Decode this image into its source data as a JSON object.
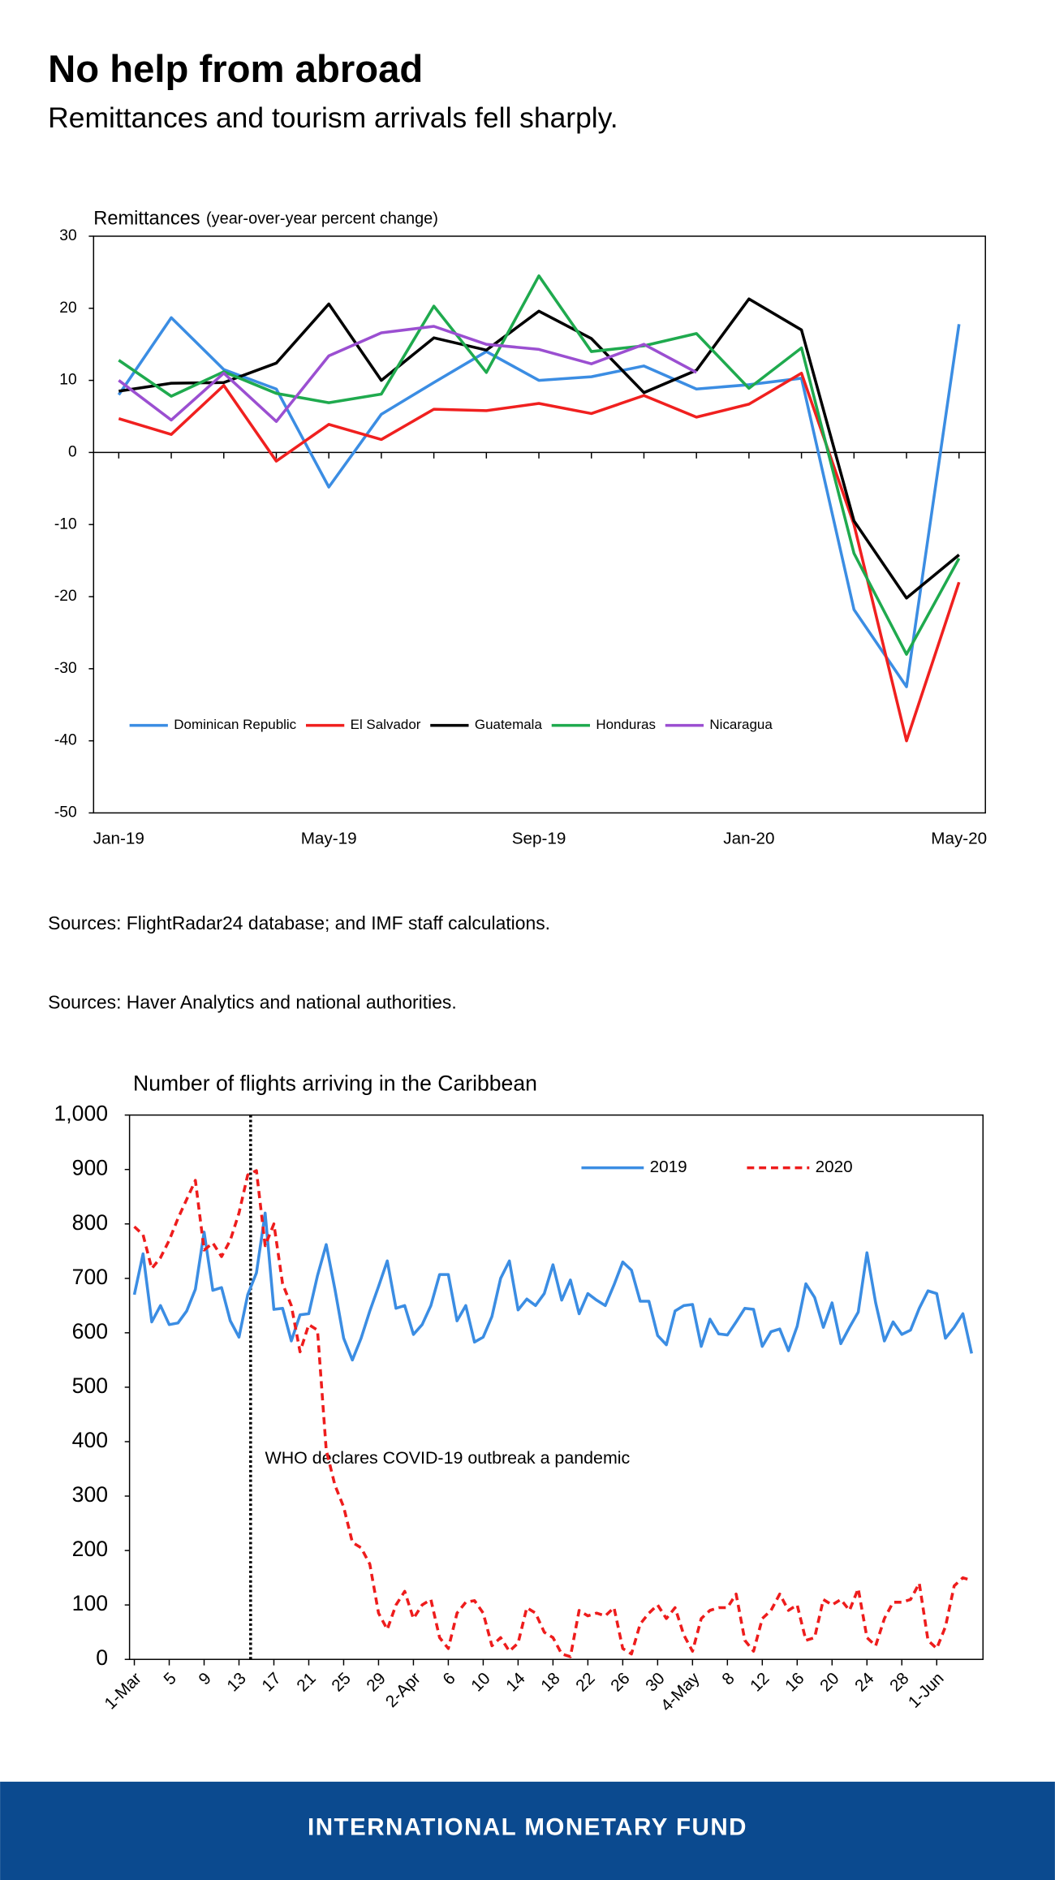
{
  "header": {
    "title": "No help from abroad",
    "subtitle": "Remittances and tourism arrivals fell sharply."
  },
  "chart_data": [
    {
      "type": "line",
      "title": "Remittances",
      "subtitle": "(year-over-year percent change)",
      "categories": [
        "Jan-19",
        null,
        null,
        null,
        "May-19",
        null,
        null,
        null,
        "Sep-19",
        null,
        null,
        null,
        "Jan-20",
        null,
        null,
        null,
        "May-20"
      ],
      "ylim": [
        -50,
        30
      ],
      "yticks": [
        -50,
        -40,
        -30,
        -20,
        -10,
        0,
        10,
        20,
        30
      ],
      "legend": "bottom-left",
      "series": [
        {
          "name": "Dominican Republic",
          "color": "#3b8de3",
          "values": [
            8,
            18.7,
            11.5,
            8.8,
            -4.8,
            5.3,
            9.7,
            14,
            10,
            10.5,
            12,
            8.8,
            9.4,
            10.3,
            -21.8,
            -32.5,
            17.8
          ]
        },
        {
          "name": "El Salvador",
          "color": "#f0201f",
          "values": [
            4.7,
            2.5,
            9.3,
            -1.2,
            3.9,
            1.8,
            6,
            5.8,
            6.8,
            5.4,
            7.9,
            4.9,
            6.7,
            11,
            -10,
            -40,
            -18
          ]
        },
        {
          "name": "Guatemala",
          "color": "#000000",
          "values": [
            8.5,
            9.6,
            9.7,
            12.4,
            20.6,
            10,
            15.9,
            14.2,
            19.6,
            15.8,
            8.3,
            11.4,
            21.3,
            17,
            -9.5,
            -20.2,
            -14.2
          ]
        },
        {
          "name": "Honduras",
          "color": "#1faa4e",
          "values": [
            12.8,
            7.8,
            11.2,
            8.2,
            6.9,
            8.1,
            20.3,
            11.1,
            24.5,
            14,
            14.8,
            16.5,
            8.9,
            14.5,
            -14,
            -28,
            -14.7
          ]
        },
        {
          "name": "Nicaragua",
          "color": "#9b4fd1",
          "values": [
            10,
            4.5,
            11,
            4.3,
            13.4,
            16.6,
            17.5,
            15,
            14.3,
            12.3,
            15,
            11.1,
            null,
            null,
            null,
            null,
            null
          ]
        }
      ]
    },
    {
      "type": "line",
      "title": "Number of flights arriving in the Caribbean",
      "annotation": "WHO declares COVID-19 outbreak a pandemic",
      "categories": [
        "1-Mar",
        null,
        null,
        null,
        "5",
        null,
        null,
        null,
        "9",
        null,
        null,
        null,
        "13",
        null,
        null,
        null,
        "17",
        null,
        null,
        null,
        "21",
        null,
        null,
        null,
        "25",
        null,
        null,
        null,
        "29",
        null,
        null,
        null,
        "2-Apr",
        null,
        null,
        null,
        "6",
        null,
        null,
        null,
        "10",
        null,
        null,
        null,
        "14",
        null,
        null,
        null,
        "18",
        null,
        null,
        null,
        "22",
        null,
        null,
        null,
        "26",
        null,
        null,
        null,
        "30",
        null,
        null,
        null,
        "4-May",
        null,
        null,
        null,
        "8",
        null,
        null,
        null,
        "12",
        null,
        null,
        null,
        "16",
        null,
        null,
        null,
        "20",
        null,
        null,
        null,
        "24",
        null,
        null,
        null,
        "28",
        null,
        null,
        null,
        "1-Jun",
        null,
        null,
        null,
        null
      ],
      "ylim": [
        0,
        1000
      ],
      "yticks": [
        0,
        100,
        200,
        300,
        400,
        500,
        600,
        700,
        800,
        900,
        {
          "value": 1000,
          "label": "1,000"
        }
      ],
      "legend": "top-right",
      "series": [
        {
          "name": "2019",
          "color": "#3b8de3",
          "values": [
            670,
            745,
            620,
            650,
            615,
            618,
            640,
            680,
            785,
            678,
            683,
            622,
            592,
            670,
            710,
            820,
            643,
            645,
            585,
            633,
            635,
            705,
            762,
            680,
            590,
            550,
            590,
            640,
            685,
            732,
            645,
            650,
            597,
            615,
            650,
            707,
            707,
            622,
            650,
            583,
            592,
            630,
            700,
            732,
            642,
            662,
            650,
            672,
            725,
            660,
            697,
            635,
            672,
            660,
            650,
            688,
            730,
            715,
            658,
            658,
            595,
            578,
            640,
            650,
            652,
            575,
            625,
            598,
            596,
            620,
            645,
            643,
            575,
            602,
            607,
            567,
            612,
            690,
            665,
            610,
            655,
            580,
            610,
            638,
            747,
            655,
            585,
            620,
            597,
            605,
            645,
            677,
            672,
            590,
            610,
            635,
            562
          ]
        },
        {
          "name": "2020",
          "color": "#ee1c1c",
          "dashed": true,
          "values": [
            795,
            780,
            718,
            738,
            770,
            810,
            845,
            880,
            752,
            765,
            740,
            770,
            820,
            890,
            898,
            760,
            800,
            690,
            650,
            565,
            615,
            605,
            385,
            320,
            280,
            215,
            205,
            175,
            85,
            55,
            100,
            125,
            75,
            100,
            110,
            40,
            20,
            85,
            105,
            108,
            85,
            25,
            40,
            15,
            30,
            95,
            85,
            50,
            40,
            10,
            5,
            90,
            80,
            85,
            80,
            95,
            20,
            10,
            65,
            85,
            100,
            75,
            95,
            45,
            15,
            75,
            90,
            95,
            95,
            120,
            35,
            15,
            75,
            90,
            120,
            90,
            100,
            35,
            40,
            110,
            100,
            110,
            90,
            130,
            40,
            25,
            75,
            105,
            105,
            110,
            140,
            35,
            20,
            60,
            135,
            150,
            145
          ]
        }
      ]
    }
  ],
  "sources": [
    "Sources: FlightRadar24 database; and IMF staff calculations.",
    "Sources: Haver Analytics and national authorities."
  ],
  "footer": {
    "text": "INTERNATIONAL MONETARY FUND"
  }
}
